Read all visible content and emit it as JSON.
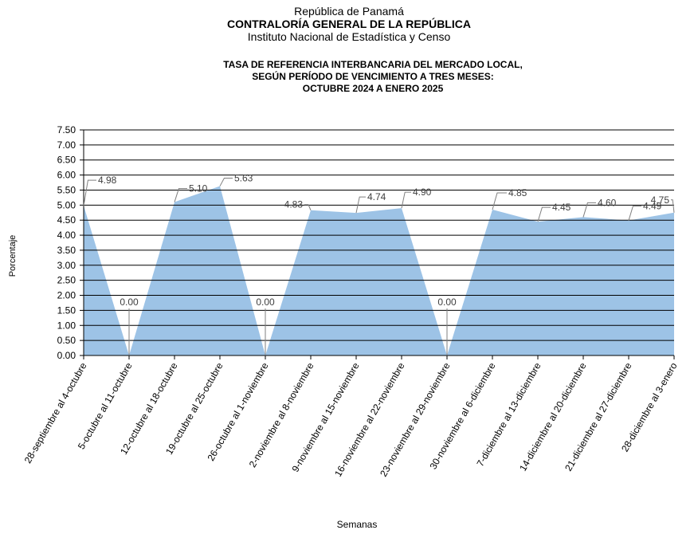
{
  "header": {
    "line1": "República de Panamá",
    "line2": "CONTRALORÍA GENERAL DE LA REPÚBLICA",
    "line3": "Instituto Nacional de Estadística y Censo"
  },
  "title": {
    "line1": "TASA DE REFERENCIA  INTERBANCARIA  DEL MERCADO LOCAL,",
    "line2": "SEGÚN PERÍODO DE VENCIMIENTO  A TRES MESES:",
    "line3": "OCTUBRE  2024 A ENERO  2025"
  },
  "chart_data": {
    "type": "area",
    "ylabel": "Porcentaje",
    "xlabel": "Semanas",
    "ylim": [
      0,
      7.5
    ],
    "ytick_step": 0.5,
    "grid": true,
    "color": "#9DC3E6",
    "categories": [
      "28-septiembre al 4-octubre",
      "5-octubre al 11-octubre",
      "12-octubre al 18-octubre",
      "19-octubre al 25-octubre",
      "26-octubre al 1-noviembre",
      "2-noviembre al 8-noviembre",
      "9-noviembre al 15-noviembre",
      "16-noviembre al 22-noviembre",
      "23-noviembre al 29-noviembre",
      "30-noviembre al 6-diciembre",
      "7-diciembre al 13-diciembre",
      "14-diciembre al 20-diciembre",
      "21-diciembre al 27-diciembre",
      "28-diciembre al 3-enero"
    ],
    "values": [
      4.98,
      0.0,
      5.1,
      5.63,
      0.0,
      4.83,
      4.74,
      4.9,
      0.0,
      4.85,
      4.45,
      4.6,
      4.49,
      4.75
    ],
    "data_labels": [
      "4.98",
      "0.00",
      "5.10",
      "5.63",
      "0.00",
      "4.83",
      "4.74",
      "4.90",
      "0.00",
      "4.85",
      "4.45",
      "4.60",
      "4.49",
      "4.75"
    ]
  }
}
